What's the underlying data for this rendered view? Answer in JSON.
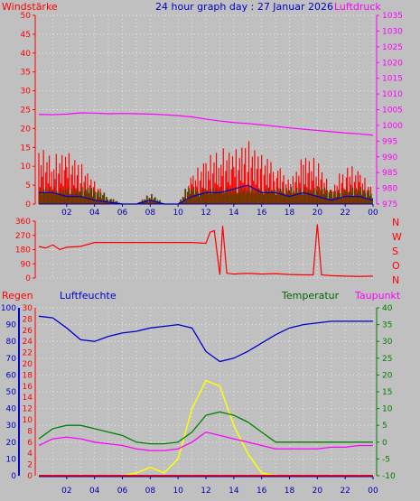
{
  "header": {
    "left_label": "Windstärke",
    "title": "24 hour graph day : 27 Januar 2026",
    "right_label": "Luftdruck"
  },
  "panel2": {
    "directions": [
      "N",
      "W",
      "S",
      "O",
      "N"
    ]
  },
  "panel3": {
    "label_regen": "Regen",
    "label_luftfeuchte": "Luftfeuchte",
    "label_temperatur": "Temperatur",
    "label_taupunkt": "Taupunkt"
  },
  "colors": {
    "wind": "#ff0000",
    "gust_dark": "#006600",
    "wind_avg": "#0000cc",
    "pressure": "#ff00ff",
    "direction": "#ff0000",
    "humidity": "#0000cc",
    "temperature": "#008000",
    "dewpoint": "#ff00ff",
    "sun": "#ffff00",
    "rain": "#ff0000",
    "background": "#c0c0c0"
  },
  "chart_data": [
    {
      "type": "line",
      "name": "wind_pressure",
      "x_ticks": [
        "02",
        "04",
        "06",
        "08",
        "10",
        "12",
        "14",
        "16",
        "18",
        "20",
        "22",
        "00"
      ],
      "y_left": {
        "label": "Windstärke",
        "ticks": [
          0,
          5,
          10,
          15,
          20,
          25,
          30,
          35,
          40,
          45,
          50
        ],
        "range": [
          0,
          50
        ]
      },
      "y_right": {
        "label": "Luftdruck",
        "ticks": [
          975,
          980,
          985,
          990,
          995,
          1000,
          1005,
          1010,
          1015,
          1020,
          1025,
          1030,
          1035
        ],
        "range": [
          975,
          1035
        ]
      },
      "hours": [
        0,
        1,
        2,
        3,
        4,
        5,
        6,
        7,
        8,
        9,
        10,
        11,
        12,
        13,
        14,
        15,
        16,
        17,
        18,
        19,
        20,
        21,
        22,
        23,
        24
      ],
      "pressure": [
        1003.5,
        1003.4,
        1003.6,
        1004.0,
        1003.9,
        1003.7,
        1003.8,
        1003.7,
        1003.6,
        1003.4,
        1003.1,
        1002.7,
        1002.0,
        1001.4,
        1000.9,
        1000.6,
        1000.2,
        999.7,
        999.2,
        998.8,
        998.4,
        998.0,
        997.6,
        997.3,
        996.9
      ],
      "wind_gust_peak": [
        15,
        13,
        14,
        11,
        6,
        2,
        0,
        0,
        3,
        0,
        0,
        8,
        12,
        15,
        14,
        17,
        13,
        12,
        6,
        13,
        12,
        4,
        11,
        9,
        4
      ],
      "wind_avg": [
        3,
        3,
        2,
        2,
        1,
        0.5,
        0,
        0,
        1,
        0,
        0,
        2,
        3,
        3,
        4,
        5,
        3,
        3,
        2,
        3,
        2,
        1,
        2,
        2,
        1
      ]
    },
    {
      "type": "line",
      "name": "wind_direction",
      "y_ticks": [
        0,
        90,
        180,
        270,
        360
      ],
      "hours": [
        0,
        0.5,
        1,
        1.5,
        2,
        3,
        4,
        5,
        6,
        7,
        8,
        9,
        10,
        11,
        12,
        12.3,
        12.6,
        13,
        13.2,
        13.5,
        14,
        15,
        16,
        17,
        18,
        19,
        19.7,
        20,
        20.3,
        21,
        22,
        23,
        24
      ],
      "direction": [
        200,
        190,
        210,
        180,
        195,
        200,
        225,
        225,
        225,
        225,
        225,
        225,
        225,
        225,
        220,
        290,
        300,
        20,
        330,
        30,
        25,
        30,
        25,
        28,
        22,
        20,
        20,
        340,
        20,
        15,
        12,
        10,
        12
      ]
    },
    {
      "type": "line",
      "name": "humidity_temp_dew_rain",
      "y_regen": {
        "label": "Regen",
        "ticks": [
          0,
          2,
          4,
          6,
          8,
          10,
          12,
          14,
          16,
          18,
          20,
          22,
          24,
          26,
          28,
          30
        ]
      },
      "y_luftfeuchte": {
        "label": "Luftfeuchte",
        "ticks": [
          0,
          10,
          20,
          30,
          40,
          50,
          60,
          70,
          80,
          90,
          100
        ]
      },
      "y_temp": {
        "label": "Temperatur / Taupunkt",
        "ticks": [
          -10,
          -5,
          0,
          5,
          10,
          15,
          20,
          25,
          30,
          35,
          40
        ]
      },
      "hours": [
        0,
        1,
        2,
        3,
        4,
        5,
        6,
        7,
        8,
        9,
        10,
        11,
        12,
        13,
        14,
        15,
        16,
        17,
        18,
        19,
        20,
        21,
        22,
        23,
        24
      ],
      "humidity": [
        95,
        94,
        88,
        81,
        80,
        83,
        85,
        86,
        88,
        89,
        90,
        88,
        74,
        68,
        70,
        74,
        79,
        84,
        88,
        90,
        91,
        92,
        92,
        92,
        92
      ],
      "temperature": [
        1,
        4,
        5,
        5,
        4,
        3,
        2,
        0,
        -0.5,
        -0.5,
        0,
        3,
        8,
        9,
        8,
        6,
        3,
        0,
        0,
        0,
        0,
        0,
        0,
        0,
        0
      ],
      "dewpoint": [
        -1,
        1,
        1.5,
        1,
        0,
        -0.5,
        -1,
        -2,
        -2.5,
        -2.5,
        -2,
        0,
        3,
        2,
        1,
        0,
        -1,
        -2,
        -2,
        -2,
        -2,
        -1.5,
        -1.5,
        -1,
        -1
      ],
      "sun": [
        0,
        0,
        0,
        0,
        0,
        0,
        0,
        0.5,
        1.5,
        0.5,
        3,
        12,
        17,
        16,
        9,
        4,
        0.5,
        0,
        0,
        0,
        0,
        0,
        0,
        0,
        0
      ],
      "rain": [
        0,
        0,
        0,
        0,
        0,
        0,
        0,
        0,
        0,
        0,
        0,
        0,
        0,
        0,
        0,
        0,
        0,
        0,
        0,
        0,
        0,
        0,
        0,
        0,
        0
      ]
    }
  ]
}
